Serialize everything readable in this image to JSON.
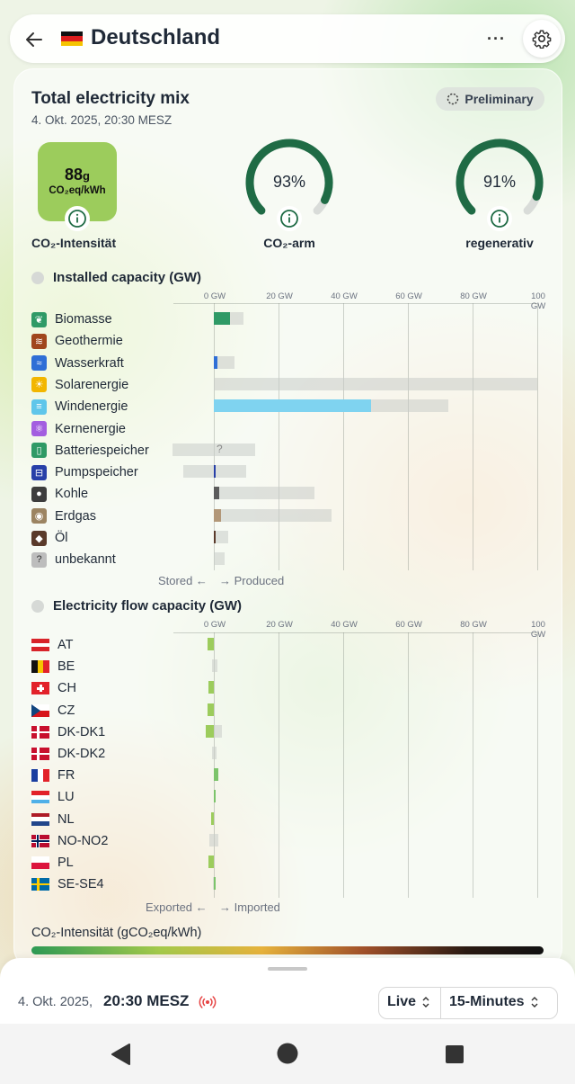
{
  "header": {
    "title": "Deutschland",
    "more_label": "···"
  },
  "mix": {
    "title": "Total electricity mix",
    "date": "4. Okt. 2025, 20:30 MESZ",
    "preliminary": "Preliminary",
    "intensity_value": "88",
    "intensity_unit_small": "g",
    "intensity_unit": "CO₂eq/kWh",
    "intensity_label": "CO₂-Intensität",
    "low_carbon_value": "93%",
    "low_carbon_fraction": 0.93,
    "low_carbon_label": "CO₂-arm",
    "renewable_value": "91%",
    "renewable_fraction": 0.91,
    "renewable_label": "regenerativ",
    "accent": "#1f6b45",
    "intensity_color": "#9ccc5c"
  },
  "installed": {
    "title": "Installed capacity (GW)",
    "ticks": [
      "0 GW",
      "20 GW",
      "40 GW",
      "60 GW",
      "80 GW",
      "100 GW"
    ],
    "axis_max": 100,
    "rows": [
      {
        "label": "Biomasse",
        "icon": "leaf-icon",
        "color": "#2f9a66",
        "produced": 5,
        "capacity": 9.2,
        "stored_capacity": 0
      },
      {
        "label": "Geothermie",
        "icon": "geothermal-icon",
        "color": "#a0461c",
        "produced": 0,
        "capacity": 0,
        "stored_capacity": 0
      },
      {
        "label": "Wasserkraft",
        "icon": "water-icon",
        "color": "#2f6fd6",
        "produced": 1.2,
        "capacity": 6.3,
        "stored_capacity": 0
      },
      {
        "label": "Solarenergie",
        "icon": "sun-icon",
        "color": "#f2b600",
        "produced": 0,
        "capacity": 100,
        "stored_capacity": 0
      },
      {
        "label": "Windenergie",
        "icon": "wind-icon",
        "color": "#7fd3f0",
        "produced": 48.5,
        "capacity": 72.5,
        "stored_capacity": 0
      },
      {
        "label": "Kernenergie",
        "icon": "atom-icon",
        "color": "#a35ee0",
        "produced": 0,
        "capacity": 0,
        "stored_capacity": 0
      },
      {
        "label": "Batteriespeicher",
        "icon": "battery-icon",
        "color": "#2f9a66",
        "produced": 0,
        "capacity": 12.8,
        "stored_capacity": 12.8,
        "unknown_marker": "?"
      },
      {
        "label": "Pumpspeicher",
        "icon": "pump-icon",
        "color": "#2840a8",
        "produced": 0.4,
        "capacity": 10,
        "stored_capacity": 9.5
      },
      {
        "label": "Kohle",
        "icon": "coal-icon",
        "color": "#5c5c5c",
        "produced": 1.8,
        "capacity": 31,
        "stored_capacity": 0
      },
      {
        "label": "Erdgas",
        "icon": "gas-icon",
        "color": "#b29778",
        "produced": 2.3,
        "capacity": 36.5,
        "stored_capacity": 0
      },
      {
        "label": "Öl",
        "icon": "oil-icon",
        "color": "#5a3a2a",
        "produced": 0.2,
        "capacity": 4.5,
        "stored_capacity": 0
      },
      {
        "label": "unbekannt",
        "icon": "question-icon",
        "color": "#9a9a9a",
        "produced": 0,
        "capacity": 3.3,
        "stored_capacity": 0
      }
    ],
    "footer_left": "Stored ←",
    "footer_right": "→ Produced"
  },
  "flow": {
    "title": "Electricity flow capacity (GW)",
    "ticks": [
      "0 GW",
      "20 GW",
      "40 GW",
      "60 GW",
      "80 GW",
      "100 GW"
    ],
    "axis_max": 100,
    "rows": [
      {
        "label": "AT",
        "flag": "at",
        "export": 1.9,
        "import": 0,
        "cap_export": 1.9,
        "cap_import": 0
      },
      {
        "label": "BE",
        "flag": "be",
        "export": 0,
        "import": 0,
        "cap_export": 0.5,
        "cap_import": 1.1
      },
      {
        "label": "CH",
        "flag": "ch",
        "export": 1.8,
        "import": 0,
        "cap_export": 1.8,
        "cap_import": 0
      },
      {
        "label": "CZ",
        "flag": "cz",
        "export": 1.9,
        "import": 0,
        "cap_export": 1.9,
        "cap_import": 0
      },
      {
        "label": "DK-DK1",
        "flag": "dk",
        "export": 2.5,
        "import": 0,
        "cap_export": 2.5,
        "cap_import": 2.5
      },
      {
        "label": "DK-DK2",
        "flag": "dk",
        "export": 0,
        "import": 0,
        "cap_export": 0.6,
        "cap_import": 0.9
      },
      {
        "label": "FR",
        "flag": "fr",
        "export": 0,
        "import": 1.4,
        "cap_export": 0,
        "cap_import": 1.4
      },
      {
        "label": "LU",
        "flag": "lu",
        "export": 0,
        "import": 0.3,
        "cap_export": 0,
        "cap_import": 0.3
      },
      {
        "label": "NL",
        "flag": "nl",
        "export": 0.9,
        "import": 0,
        "cap_export": 0.9,
        "cap_import": 0
      },
      {
        "label": "NO-NO2",
        "flag": "no",
        "export": 0,
        "import": 0,
        "cap_export": 1.4,
        "cap_import": 1.4
      },
      {
        "label": "PL",
        "flag": "pl",
        "export": 1.6,
        "import": 0,
        "cap_export": 1.6,
        "cap_import": 0
      },
      {
        "label": "SE-SE4",
        "flag": "se",
        "export": 0,
        "import": 0.6,
        "cap_export": 0.2,
        "cap_import": 0.6
      }
    ],
    "footer_left": "Exported ←",
    "footer_right": "→ Imported"
  },
  "legend": {
    "title": "CO₂-Intensität (gCO₂eq/kWh)"
  },
  "bottom": {
    "date": "4. Okt. 2025,",
    "time": "20:30 MESZ",
    "live_label": "Live",
    "interval_label": "15-Minutes"
  }
}
